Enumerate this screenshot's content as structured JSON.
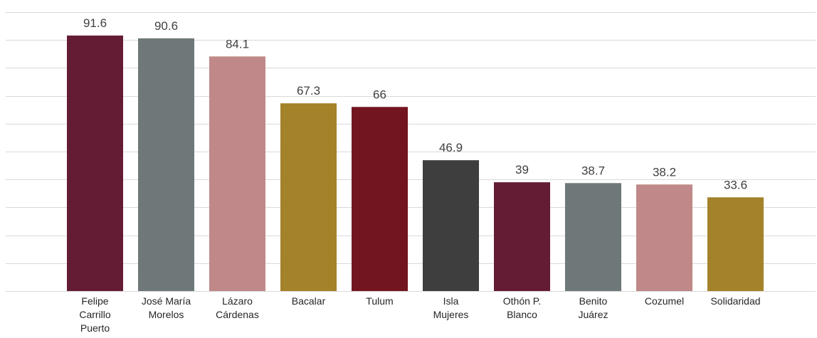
{
  "chart_data": {
    "type": "bar",
    "title": "",
    "xlabel": "",
    "ylabel": "",
    "categories": [
      [
        "Felipe",
        "Carrillo",
        "Puerto"
      ],
      [
        "José María",
        "Morelos"
      ],
      [
        "Lázaro",
        "Cárdenas"
      ],
      [
        "Bacalar"
      ],
      [
        "Tulum"
      ],
      [
        "Isla",
        "Mujeres"
      ],
      [
        "Othón P.",
        "Blanco"
      ],
      [
        "Benito",
        "Juárez"
      ],
      [
        "Cozumel"
      ],
      [
        "Solidaridad"
      ]
    ],
    "values": [
      91.6,
      90.6,
      84.1,
      67.3,
      66,
      46.9,
      39,
      38.7,
      38.2,
      33.6
    ],
    "value_labels": [
      "91.6",
      "90.6",
      "84.1",
      "67.3",
      "66",
      "46.9",
      "39",
      "38.7",
      "38.2",
      "33.6"
    ],
    "colors": [
      "#641c34",
      "#6e7878",
      "#c08888",
      "#a4822a",
      "#731520",
      "#3e3e3e",
      "#641c34",
      "#6e7878",
      "#c08888",
      "#a4822a"
    ],
    "ylim": [
      0,
      100
    ],
    "gridline_step": 10,
    "grid": true,
    "legend": "none"
  }
}
